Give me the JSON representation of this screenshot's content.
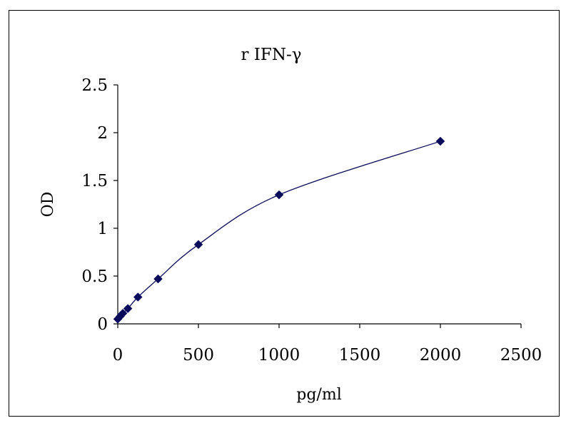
{
  "chart_data": {
    "type": "scatter",
    "title": "r IFN-γ",
    "xlabel": "pg/ml",
    "ylabel": "OD",
    "xlim": [
      0,
      2500
    ],
    "ylim": [
      0,
      2.5
    ],
    "xticks": [
      "0",
      "500",
      "1000",
      "1500",
      "2000",
      "2500"
    ],
    "yticks": [
      "0",
      "0.5",
      "1",
      "1.5",
      "2",
      "2.5"
    ],
    "grid": false,
    "legend": "none",
    "series": [
      {
        "x": [
          0,
          15.6,
          31.25,
          62.5,
          125,
          250,
          500,
          1000,
          2000
        ],
        "y": [
          0.05,
          0.08,
          0.11,
          0.16,
          0.28,
          0.47,
          0.83,
          1.35,
          1.91
        ],
        "marker": "diamond",
        "line": "smooth",
        "color": "#0a0a5c"
      }
    ]
  }
}
